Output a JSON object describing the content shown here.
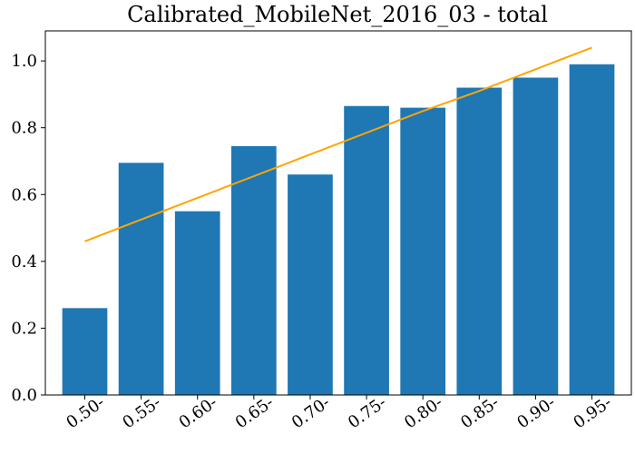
{
  "chart_data": {
    "type": "bar",
    "title": "Calibrated_MobileNet_2016_03 - total",
    "xlabel": "",
    "ylabel": "",
    "categories": [
      "0.50-",
      "0.55-",
      "0.60-",
      "0.65-",
      "0.70-",
      "0.75-",
      "0.80-",
      "0.85-",
      "0.90-",
      "0.95-"
    ],
    "series": [
      {
        "values": [
          0.26,
          0.695,
          0.55,
          0.745,
          0.66,
          0.865,
          0.86,
          0.92,
          0.95,
          0.99
        ],
        "color": "#1f77b4"
      }
    ],
    "reference_line": {
      "values": [
        0.46,
        0.525,
        0.59,
        0.655,
        0.72,
        0.785,
        0.85,
        0.91,
        0.975,
        1.04
      ],
      "color": "#ffa500"
    },
    "ylim": [
      0.0,
      1.09
    ],
    "yticks": [
      0.0,
      0.2,
      0.4,
      0.6,
      0.8,
      1.0
    ],
    "ytick_labels": [
      "0.0",
      "0.2",
      "0.4",
      "0.6",
      "0.8",
      "1.0"
    ],
    "grid": false,
    "legend": "none"
  }
}
